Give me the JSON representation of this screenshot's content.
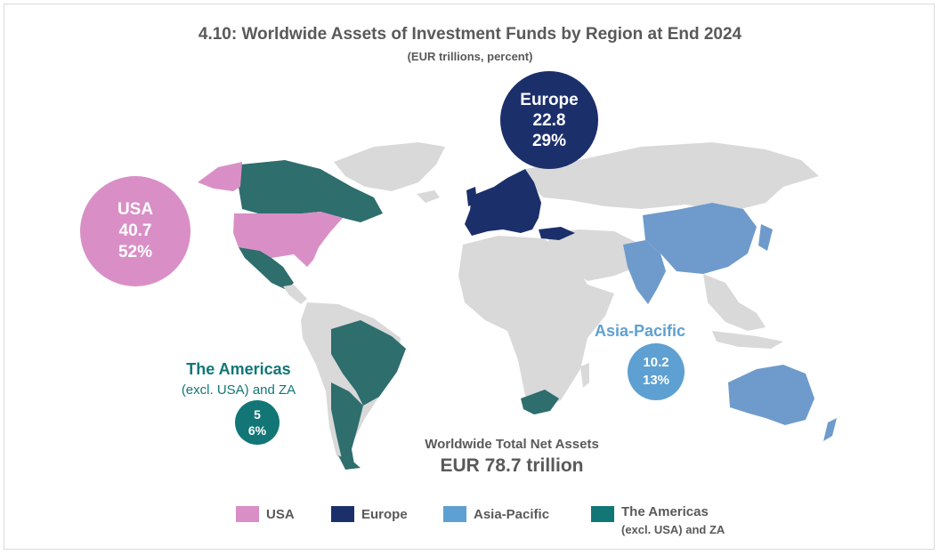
{
  "title": "4.10: Worldwide Assets of Investment Funds by Region at End 2024",
  "subtitle": "(EUR trillions, percent)",
  "regions": {
    "usa": {
      "label": "USA",
      "value": "40.7",
      "share": "52%",
      "color": "#d98fc6"
    },
    "europe": {
      "label": "Europe",
      "value": "22.8",
      "share": "29%",
      "color": "#1b2f6b"
    },
    "asia_pacific": {
      "label": "Asia-Pacific",
      "value": "10.2",
      "share": "13%",
      "color": "#5ea0d1"
    },
    "americas": {
      "label": "The Americas",
      "sublabel": "(excl. USA) and ZA",
      "value": "5",
      "share": "6%",
      "color": "#127677"
    }
  },
  "total": {
    "label": "Worldwide Total Net Assets",
    "value": "EUR 78.7 trillion"
  },
  "legend": {
    "usa": "USA",
    "europe": "Europe",
    "asia_pacific": "Asia-Pacific",
    "americas": "The Americas",
    "americas_sub": "(excl. USA) and ZA"
  },
  "colors": {
    "land": "#d9d9d9",
    "text": "#595959"
  }
}
